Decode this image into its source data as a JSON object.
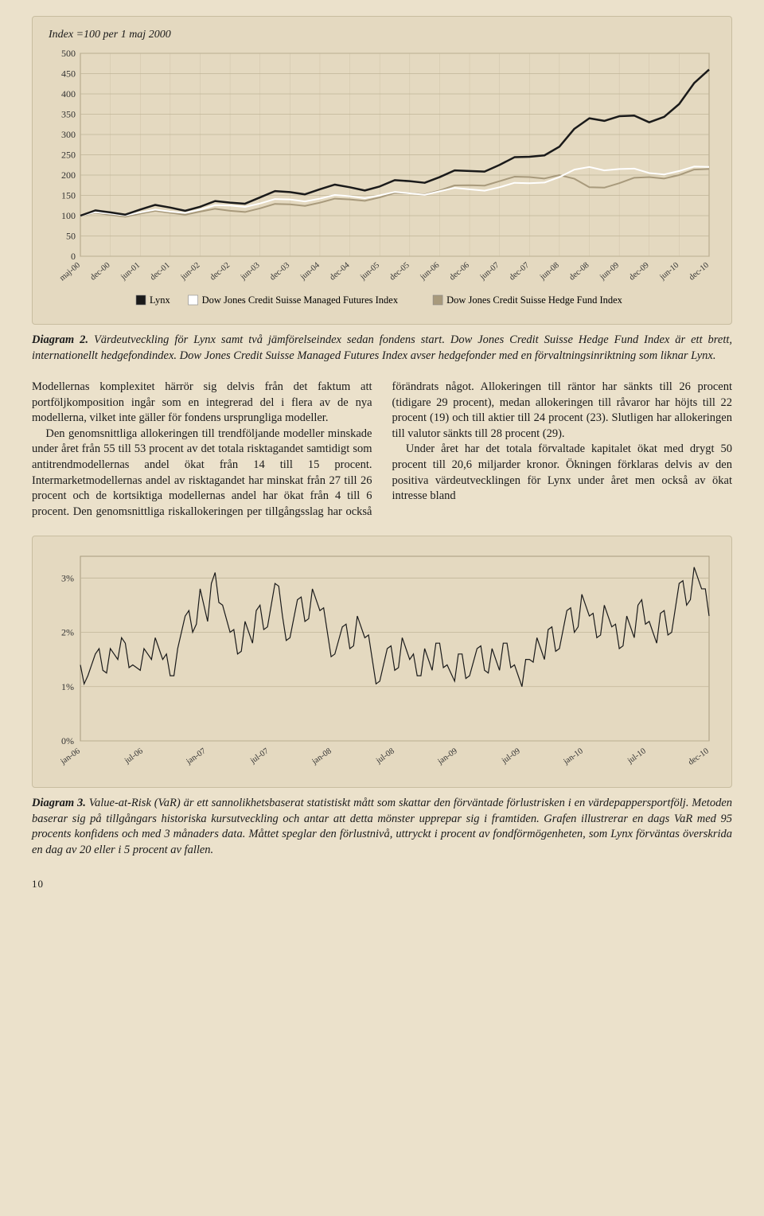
{
  "page": {
    "number": "10"
  },
  "chart1": {
    "type": "line",
    "subtitle": "Index =100 per 1 maj 2000",
    "background": "#e4d9c0",
    "plot_background": "#e4d9c0",
    "grid_color": "#c0b598",
    "border_color": "#a89c7e",
    "ylim": [
      0,
      500
    ],
    "ytick_step": 50,
    "yticks": [
      "0",
      "50",
      "100",
      "150",
      "200",
      "250",
      "300",
      "350",
      "400",
      "450",
      "500"
    ],
    "categories": [
      "maj-00",
      "dec-00",
      "jun-01",
      "dec-01",
      "jun-02",
      "dec-02",
      "jun-03",
      "dec-03",
      "jun-04",
      "dec-04",
      "jun-05",
      "dec-05",
      "jun-06",
      "dec-06",
      "jun-07",
      "dec-07",
      "jun-08",
      "dec-08",
      "jun-09",
      "dec-09",
      "jun-10",
      "dec-10"
    ],
    "series": [
      {
        "name": "Lynx",
        "color": "#1a1a1a",
        "width": 2.5,
        "values": [
          100,
          108,
          115,
          120,
          122,
          132,
          145,
          158,
          165,
          170,
          172,
          185,
          195,
          210,
          225,
          245,
          270,
          340,
          345,
          330,
          375,
          460
        ]
      },
      {
        "name": "Dow Jones Credit Suisse Managed Futures Index",
        "color": "#ffffff",
        "width": 2,
        "values": [
          100,
          105,
          108,
          110,
          115,
          125,
          130,
          140,
          142,
          148,
          150,
          155,
          160,
          165,
          170,
          180,
          195,
          220,
          215,
          205,
          210,
          220
        ]
      },
      {
        "name": "Dow Jones Credit Suisse Hedge Fund Index",
        "color": "#a89a7c",
        "width": 2,
        "values": [
          100,
          102,
          105,
          107,
          110,
          112,
          118,
          128,
          132,
          140,
          145,
          155,
          162,
          175,
          185,
          195,
          200,
          170,
          180,
          195,
          200,
          215
        ]
      }
    ],
    "legend_swatches": [
      "#1a1a1a",
      "#ffffff",
      "#a89a7c"
    ]
  },
  "caption1": {
    "label": "Diagram 2.",
    "text": "Värdeutveckling för Lynx samt två jämförelseindex sedan fondens start. Dow Jones Credit Suisse Hedge Fund Index är ett brett, internationellt hedgefondindex. Dow Jones Credit Suisse Managed Futures Index avser hedgefonder med en förvaltningsinriktning som liknar Lynx."
  },
  "body": {
    "p1": "Modellernas komplexitet härrör sig delvis från det faktum att portföljkomposition ingår som en integrerad del i flera av de nya modellerna, vilket inte gäller för fondens ursprungliga modeller.",
    "p2": "Den genomsnittliga allokeringen till trendföljande modeller minskade under året från 55 till 53 procent av det totala risktagandet samtidigt som antitrendmodellernas andel ökat från 14 till 15 procent. Intermarketmodellernas andel av risktagandet har minskat från 27 till 26 procent och de kortsiktiga modellernas andel har ökat från 4 till 6 procent. Den genomsnittliga riskallokeringen per tillgångsslag har också förändrats något. Allokeringen till räntor har sänkts till 26 procent (tidigare 29 procent), medan allokeringen till råvaror har höjts till 22 procent (19) och till aktier till 24 procent (23). Slutligen har allokeringen till valutor sänkts till 28 procent (29).",
    "p3": "Under året har det totala förvaltade kapitalet ökat med drygt 50 procent till 20,6 miljarder kronor. Ökningen förklaras delvis av den positiva värdeutvecklingen för Lynx under året men också av ökat intresse bland"
  },
  "chart2": {
    "type": "line",
    "background": "#e4d9c0",
    "grid_color": "#c0b598",
    "border_color": "#a89c7e",
    "series_color": "#1a1a1a",
    "series_width": 1.2,
    "ylim": [
      0,
      3.4
    ],
    "yticks": [
      "0%",
      "1%",
      "2%",
      "3%"
    ],
    "ytick_vals": [
      0,
      1,
      2,
      3
    ],
    "categories": [
      "jan-06",
      "jul-06",
      "jan-07",
      "jul-07",
      "jan-08",
      "jul-08",
      "jan-09",
      "jul-09",
      "jan-10",
      "jul-10",
      "dec-10"
    ],
    "values": [
      1.4,
      1.2,
      1.6,
      1.3,
      1.7,
      1.5,
      1.8,
      1.4,
      1.3,
      1.6,
      1.9,
      1.5,
      1.2,
      1.7,
      2.3,
      2.0,
      2.8,
      2.2,
      3.1,
      2.5,
      2.0,
      1.6,
      2.2,
      1.8,
      2.5,
      2.1,
      2.9,
      2.3,
      1.9,
      2.6,
      2.2,
      2.8,
      2.4,
      2.0,
      1.6,
      2.1,
      1.7,
      2.3,
      1.9,
      1.5,
      1.1,
      1.7,
      1.3,
      1.9,
      1.5,
      1.2,
      1.7,
      1.3,
      1.8,
      1.4,
      1.1,
      1.6,
      1.2,
      1.7,
      1.3,
      1.7,
      1.3,
      1.8,
      1.4,
      1.0,
      1.5,
      1.9,
      1.5,
      2.1,
      1.7,
      2.4,
      2.0,
      2.7,
      2.3,
      1.9,
      2.5,
      2.1,
      1.7,
      2.3,
      1.9,
      2.6,
      2.2,
      1.8,
      2.4,
      2.0,
      2.9,
      2.5,
      3.2,
      2.8,
      2.3
    ]
  },
  "caption2": {
    "label": "Diagram 3.",
    "text": "Value-at-Risk (VaR) är ett sannolikhetsbaserat statistiskt mått som skattar den förväntade förlustrisken i en värdepappersportfölj. Metoden baserar sig på tillgångars historiska kursutveckling och antar att detta mönster upprepar sig i framtiden. Grafen illustrerar en dags VaR med 95 procents konfidens och med 3 månaders data. Måttet speglar den förlustnivå, uttryckt i procent av fondförmögenheten, som Lynx förväntas överskrida en dag av 20 eller i 5 procent av fallen."
  }
}
